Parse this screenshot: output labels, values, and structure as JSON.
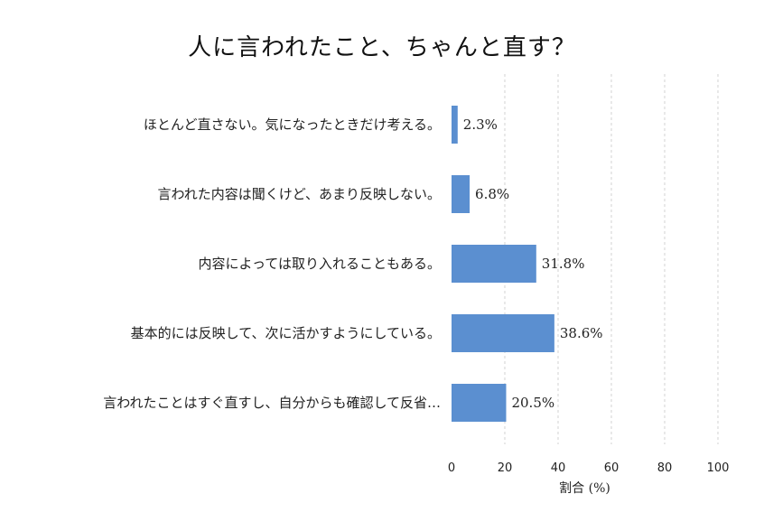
{
  "chart_data": {
    "type": "bar",
    "orientation": "horizontal",
    "title": "人に言われたこと、ちゃんと直す？",
    "xlabel": "割合 (%)",
    "ylabel": "",
    "xlim": [
      0,
      100
    ],
    "xticks": [
      "0",
      "20",
      "40",
      "60",
      "80",
      "100"
    ],
    "grid": "vertical dashed",
    "categories": [
      "ほとんど直さない。気になったときだけ考える。",
      "言われた内容は聞くけど、あまり反映しない。",
      "内容によっては取り入れることもある。",
      "基本的には反映して、次に活かすようにしている。",
      "言われたことはすぐ直すし、自分からも確認して反省…"
    ],
    "values": [
      2.3,
      6.8,
      31.8,
      38.6,
      20.5
    ],
    "value_labels": [
      "2.3%",
      "6.8%",
      "31.8%",
      "38.6%",
      "20.5%"
    ],
    "bar_color": "#5b8fd0"
  }
}
